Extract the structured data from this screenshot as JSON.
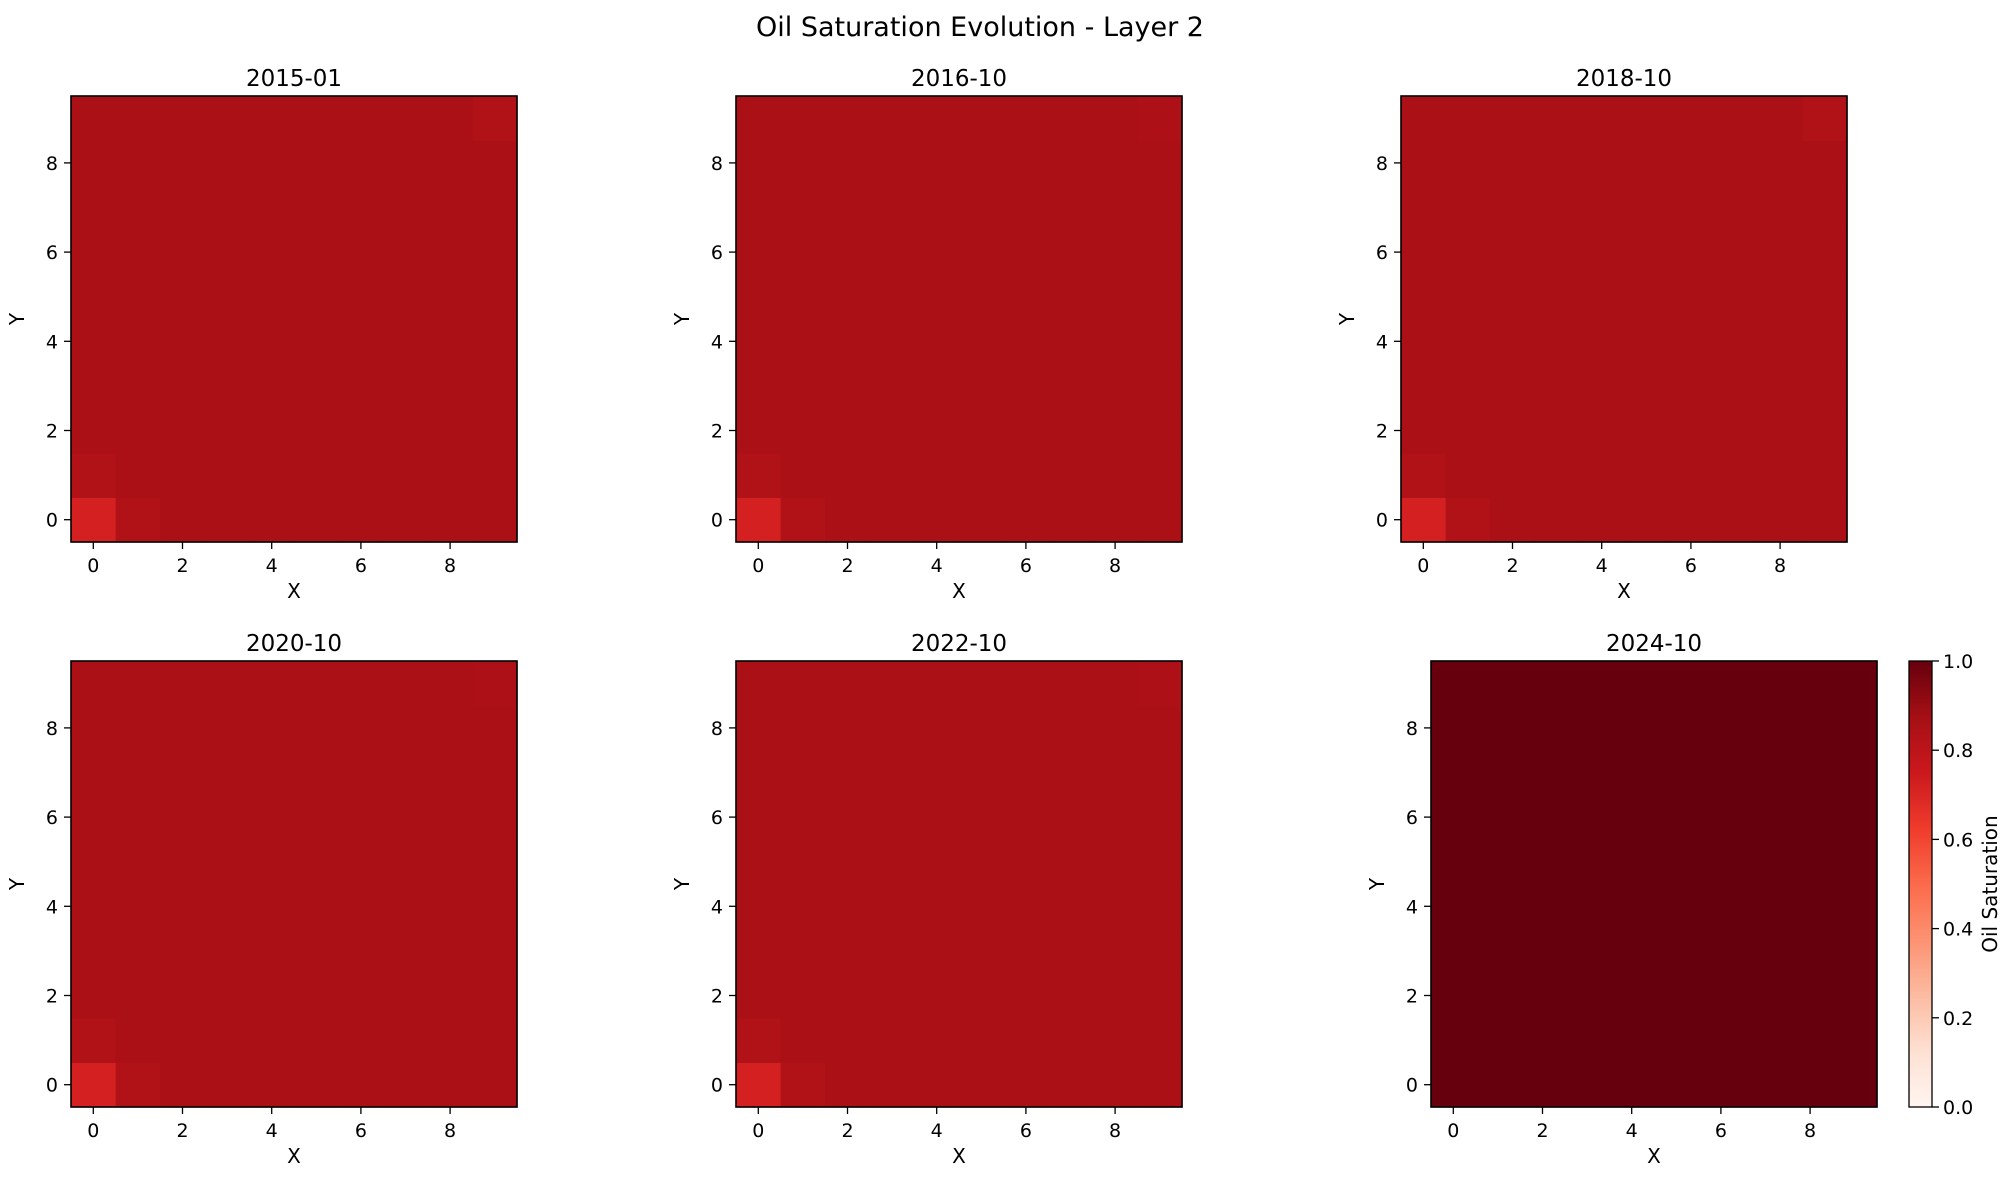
{
  "chart_data": {
    "type": "heatmap",
    "title": "Oil Saturation Evolution - Layer 2",
    "colormap": "Reds",
    "clim": [
      0.0,
      1.0
    ],
    "colorbar": {
      "label": "Oil Saturation",
      "ticks": [
        0.0,
        0.2,
        0.4,
        0.6,
        0.8,
        1.0
      ],
      "tick_labels": [
        "0.0",
        "0.2",
        "0.4",
        "0.6",
        "0.8",
        "1.0"
      ]
    },
    "grid": false,
    "grid_size": [
      10,
      10
    ],
    "panels": [
      {
        "title": "2015-01",
        "xlabel": "X",
        "ylabel": "Y",
        "xticks": [
          "0",
          "2",
          "4",
          "6",
          "8"
        ],
        "yticks": [
          "0",
          "2",
          "4",
          "6",
          "8"
        ],
        "xlim": [
          -0.5,
          9.5
        ],
        "ylim": [
          -0.5,
          9.5
        ],
        "default_value": 0.86,
        "cells": [
          {
            "x": 0,
            "y": 0,
            "v": 0.72
          },
          {
            "x": 1,
            "y": 0,
            "v": 0.84
          },
          {
            "x": 0,
            "y": 1,
            "v": 0.84
          },
          {
            "x": 9,
            "y": 9,
            "v": 0.84
          }
        ]
      },
      {
        "title": "2016-10",
        "xlabel": "X",
        "ylabel": "Y",
        "xticks": [
          "0",
          "2",
          "4",
          "6",
          "8"
        ],
        "yticks": [
          "0",
          "2",
          "4",
          "6",
          "8"
        ],
        "xlim": [
          -0.5,
          9.5
        ],
        "ylim": [
          -0.5,
          9.5
        ],
        "default_value": 0.86,
        "cells": [
          {
            "x": 0,
            "y": 0,
            "v": 0.72
          },
          {
            "x": 1,
            "y": 0,
            "v": 0.84
          },
          {
            "x": 0,
            "y": 1,
            "v": 0.84
          },
          {
            "x": 9,
            "y": 9,
            "v": 0.85
          }
        ]
      },
      {
        "title": "2018-10",
        "xlabel": "X",
        "ylabel": "Y",
        "xticks": [
          "0",
          "2",
          "4",
          "6",
          "8"
        ],
        "yticks": [
          "0",
          "2",
          "4",
          "6",
          "8"
        ],
        "xlim": [
          -0.5,
          9.5
        ],
        "ylim": [
          -0.5,
          9.5
        ],
        "default_value": 0.86,
        "cells": [
          {
            "x": 0,
            "y": 0,
            "v": 0.72
          },
          {
            "x": 1,
            "y": 0,
            "v": 0.84
          },
          {
            "x": 0,
            "y": 1,
            "v": 0.84
          },
          {
            "x": 9,
            "y": 9,
            "v": 0.84
          }
        ]
      },
      {
        "title": "2020-10",
        "xlabel": "X",
        "ylabel": "Y",
        "xticks": [
          "0",
          "2",
          "4",
          "6",
          "8"
        ],
        "yticks": [
          "0",
          "2",
          "4",
          "6",
          "8"
        ],
        "xlim": [
          -0.5,
          9.5
        ],
        "ylim": [
          -0.5,
          9.5
        ],
        "default_value": 0.86,
        "cells": [
          {
            "x": 0,
            "y": 0,
            "v": 0.72
          },
          {
            "x": 1,
            "y": 0,
            "v": 0.84
          },
          {
            "x": 0,
            "y": 1,
            "v": 0.84
          },
          {
            "x": 9,
            "y": 9,
            "v": 0.85
          }
        ]
      },
      {
        "title": "2022-10",
        "xlabel": "X",
        "ylabel": "Y",
        "xticks": [
          "0",
          "2",
          "4",
          "6",
          "8"
        ],
        "yticks": [
          "0",
          "2",
          "4",
          "6",
          "8"
        ],
        "xlim": [
          -0.5,
          9.5
        ],
        "ylim": [
          -0.5,
          9.5
        ],
        "default_value": 0.86,
        "cells": [
          {
            "x": 0,
            "y": 0,
            "v": 0.72
          },
          {
            "x": 1,
            "y": 0,
            "v": 0.84
          },
          {
            "x": 0,
            "y": 1,
            "v": 0.84
          },
          {
            "x": 9,
            "y": 9,
            "v": 0.85
          }
        ]
      },
      {
        "title": "2024-10",
        "xlabel": "X",
        "ylabel": "Y",
        "xticks": [
          "0",
          "2",
          "4",
          "6",
          "8"
        ],
        "yticks": [
          "0",
          "2",
          "4",
          "6",
          "8"
        ],
        "xlim": [
          -0.5,
          9.5
        ],
        "ylim": [
          -0.5,
          9.5
        ],
        "default_value": 1.0,
        "cells": []
      }
    ]
  }
}
